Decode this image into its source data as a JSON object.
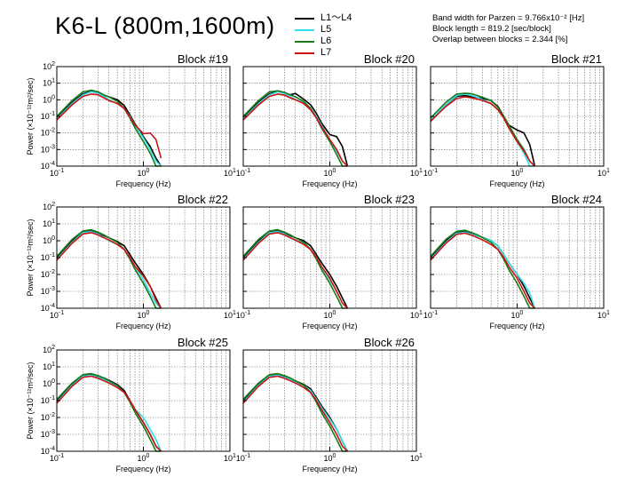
{
  "title": "K6-L (800m,1600m)",
  "legend": [
    {
      "label": "L1～L4",
      "color": "#000000"
    },
    {
      "label": "L5",
      "color": "#33ddee"
    },
    {
      "label": "L6",
      "color": "#1a7a1a"
    },
    {
      "label": "L7",
      "color": "#cc1111"
    }
  ],
  "info": {
    "bandwidth": "Band width for Parzen = 9.766x10⁻² [Hz]",
    "block_length": "Block length = 819.2 [sec/block]",
    "overlap": "Overlap between blocks = 2.344 [%]"
  },
  "chart_data": [
    {
      "type": "line",
      "block_label": "Block #19",
      "xlabel": "Frequency (Hz)",
      "ylabel": "Power (×10⁻¹²m²/sec)",
      "xscale": "log",
      "yscale": "log",
      "xlim": [
        0.1,
        10
      ],
      "ylim": [
        0.0001,
        100
      ],
      "grid": true,
      "x": [
        0.1,
        0.15,
        0.2,
        0.25,
        0.3,
        0.35,
        0.4,
        0.5,
        0.6,
        0.7,
        0.8,
        1.0,
        1.2,
        1.4,
        1.6
      ],
      "series": [
        {
          "name": "L1～L4",
          "values": [
            0.08,
            0.7,
            2.3,
            3.2,
            2.6,
            1.9,
            1.5,
            1.0,
            0.45,
            0.12,
            0.035,
            0.006,
            0.0015,
            0.0003,
            0.0001
          ]
        },
        {
          "name": "L5",
          "values": [
            0.07,
            0.6,
            2.0,
            3.0,
            2.5,
            1.6,
            1.0,
            0.6,
            0.3,
            0.1,
            0.03,
            0.005,
            0.001,
            0.0002,
            0.0001
          ]
        },
        {
          "name": "L6",
          "values": [
            0.1,
            0.9,
            3.0,
            3.8,
            3.0,
            2.0,
            1.5,
            0.8,
            0.3,
            0.08,
            0.02,
            0.003,
            0.0006,
            0.0001,
            0.0001
          ]
        },
        {
          "name": "L7",
          "values": [
            0.06,
            0.5,
            1.6,
            2.2,
            2.0,
            1.3,
            0.9,
            0.6,
            0.3,
            0.09,
            0.03,
            0.009,
            0.01,
            0.004,
            0.0003
          ]
        }
      ]
    },
    {
      "type": "line",
      "block_label": "Block #20",
      "xlabel": "Frequency (Hz)",
      "ylabel": "",
      "xscale": "log",
      "yscale": "log",
      "xlim": [
        0.1,
        10
      ],
      "ylim": [
        0.0001,
        100
      ],
      "grid": true,
      "x": [
        0.1,
        0.15,
        0.2,
        0.25,
        0.3,
        0.35,
        0.4,
        0.5,
        0.6,
        0.7,
        0.8,
        1.0,
        1.2,
        1.4,
        1.6
      ],
      "series": [
        {
          "name": "L1～L4",
          "values": [
            0.08,
            0.7,
            2.3,
            3.2,
            2.6,
            2.0,
            2.4,
            1.1,
            0.5,
            0.15,
            0.04,
            0.008,
            0.006,
            0.0015,
            0.0001
          ]
        },
        {
          "name": "L5",
          "values": [
            0.07,
            0.6,
            2.0,
            3.0,
            2.4,
            1.6,
            1.0,
            0.7,
            0.3,
            0.1,
            0.03,
            0.004,
            0.0008,
            0.0002,
            0.0001
          ]
        },
        {
          "name": "L6",
          "values": [
            0.1,
            0.9,
            3.0,
            3.5,
            2.8,
            2.0,
            1.5,
            0.8,
            0.3,
            0.08,
            0.02,
            0.003,
            0.0005,
            0.0001,
            0.0001
          ]
        },
        {
          "name": "L7",
          "values": [
            0.06,
            0.5,
            1.6,
            2.2,
            1.9,
            1.3,
            1.0,
            0.6,
            0.25,
            0.08,
            0.025,
            0.004,
            0.001,
            0.0002,
            0.0001
          ]
        }
      ]
    },
    {
      "type": "line",
      "block_label": "Block #21",
      "xlabel": "Frequency (Hz)",
      "ylabel": "",
      "xscale": "log",
      "yscale": "log",
      "xlim": [
        0.1,
        10
      ],
      "ylim": [
        0.0001,
        100
      ],
      "grid": true,
      "x": [
        0.1,
        0.15,
        0.2,
        0.25,
        0.3,
        0.35,
        0.4,
        0.5,
        0.6,
        0.7,
        0.8,
        1.0,
        1.2,
        1.4,
        1.6
      ],
      "series": [
        {
          "name": "L1～L4",
          "values": [
            0.05,
            0.5,
            1.6,
            1.8,
            1.5,
            1.4,
            1.2,
            0.9,
            0.4,
            0.1,
            0.03,
            0.015,
            0.01,
            0.002,
            0.0001
          ]
        },
        {
          "name": "L5",
          "values": [
            0.06,
            0.5,
            1.8,
            2.2,
            1.8,
            1.4,
            1.0,
            0.6,
            0.25,
            0.08,
            0.02,
            0.003,
            0.0006,
            0.0001,
            0.0001
          ]
        },
        {
          "name": "L6",
          "values": [
            0.08,
            0.7,
            2.2,
            2.5,
            2.3,
            1.8,
            1.4,
            0.9,
            0.35,
            0.1,
            0.03,
            0.004,
            0.001,
            0.0002,
            0.0001
          ]
        },
        {
          "name": "L7",
          "values": [
            0.05,
            0.4,
            1.2,
            1.5,
            1.3,
            1.1,
            0.9,
            0.6,
            0.25,
            0.08,
            0.02,
            0.003,
            0.0008,
            0.0002,
            0.0001
          ]
        }
      ]
    },
    {
      "type": "line",
      "block_label": "Block #22",
      "xlabel": "Frequency (Hz)",
      "ylabel": "Power (×10⁻¹²m²/sec)",
      "xscale": "log",
      "yscale": "log",
      "xlim": [
        0.1,
        10
      ],
      "ylim": [
        0.0001,
        100
      ],
      "grid": true,
      "x": [
        0.1,
        0.15,
        0.2,
        0.25,
        0.3,
        0.35,
        0.4,
        0.5,
        0.6,
        0.7,
        0.8,
        1.0,
        1.2,
        1.4,
        1.6
      ],
      "series": [
        {
          "name": "L1～L4",
          "values": [
            0.1,
            1.0,
            3.5,
            4.0,
            2.8,
            2.0,
            1.5,
            0.9,
            0.5,
            0.15,
            0.05,
            0.01,
            0.002,
            0.0004,
            0.0001
          ]
        },
        {
          "name": "L5",
          "values": [
            0.08,
            0.8,
            3.0,
            3.5,
            2.5,
            1.6,
            1.0,
            0.6,
            0.3,
            0.1,
            0.03,
            0.005,
            0.0008,
            0.0002,
            0.0001
          ]
        },
        {
          "name": "L6",
          "values": [
            0.12,
            1.2,
            3.8,
            4.5,
            3.2,
            2.2,
            1.5,
            0.8,
            0.3,
            0.08,
            0.02,
            0.003,
            0.0005,
            0.0001,
            0.0001
          ]
        },
        {
          "name": "L7",
          "values": [
            0.07,
            0.7,
            2.5,
            3.0,
            2.2,
            1.5,
            1.1,
            0.6,
            0.3,
            0.1,
            0.03,
            0.008,
            0.002,
            0.0003,
            0.0001
          ]
        }
      ]
    },
    {
      "type": "line",
      "block_label": "Block #23",
      "xlabel": "Frequency (Hz)",
      "ylabel": "",
      "xscale": "log",
      "yscale": "log",
      "xlim": [
        0.1,
        10
      ],
      "ylim": [
        0.0001,
        100
      ],
      "grid": true,
      "x": [
        0.1,
        0.15,
        0.2,
        0.25,
        0.3,
        0.35,
        0.4,
        0.5,
        0.6,
        0.7,
        0.8,
        1.0,
        1.2,
        1.4,
        1.6
      ],
      "series": [
        {
          "name": "L1～L4",
          "values": [
            0.1,
            1.0,
            3.5,
            4.0,
            2.8,
            2.0,
            1.5,
            1.0,
            0.5,
            0.15,
            0.05,
            0.01,
            0.002,
            0.0004,
            0.0001
          ]
        },
        {
          "name": "L5",
          "values": [
            0.08,
            0.8,
            3.0,
            3.5,
            2.5,
            1.6,
            1.0,
            0.7,
            0.3,
            0.1,
            0.03,
            0.005,
            0.001,
            0.0002,
            0.0001
          ]
        },
        {
          "name": "L6",
          "values": [
            0.12,
            1.2,
            3.8,
            4.5,
            3.2,
            2.2,
            1.5,
            0.8,
            0.3,
            0.08,
            0.02,
            0.003,
            0.0005,
            0.0001,
            0.0001
          ]
        },
        {
          "name": "L7",
          "values": [
            0.07,
            0.7,
            2.5,
            3.0,
            2.2,
            1.5,
            1.1,
            0.6,
            0.3,
            0.1,
            0.03,
            0.006,
            0.001,
            0.0002,
            0.0001
          ]
        }
      ]
    },
    {
      "type": "line",
      "block_label": "Block #24",
      "xlabel": "Frequency (Hz)",
      "ylabel": "",
      "xscale": "log",
      "yscale": "log",
      "xlim": [
        0.1,
        10
      ],
      "ylim": [
        0.0001,
        100
      ],
      "grid": true,
      "x": [
        0.1,
        0.15,
        0.2,
        0.25,
        0.3,
        0.35,
        0.4,
        0.5,
        0.6,
        0.7,
        0.8,
        1.0,
        1.2,
        1.4,
        1.6
      ],
      "series": [
        {
          "name": "L1～L4",
          "values": [
            0.1,
            1.0,
            3.2,
            3.6,
            2.6,
            2.0,
            1.6,
            1.0,
            0.5,
            0.15,
            0.05,
            0.01,
            0.002,
            0.0004,
            0.0001
          ]
        },
        {
          "name": "L5",
          "values": [
            0.08,
            0.8,
            2.8,
            3.2,
            2.4,
            1.8,
            1.6,
            1.0,
            0.5,
            0.15,
            0.05,
            0.01,
            0.003,
            0.0008,
            0.0001
          ]
        },
        {
          "name": "L6",
          "values": [
            0.12,
            1.2,
            3.6,
            4.2,
            3.0,
            2.2,
            1.5,
            0.8,
            0.3,
            0.08,
            0.02,
            0.003,
            0.0005,
            0.0001,
            0.0001
          ]
        },
        {
          "name": "L7",
          "values": [
            0.07,
            0.7,
            2.4,
            2.8,
            2.1,
            1.5,
            1.1,
            0.6,
            0.3,
            0.1,
            0.03,
            0.006,
            0.001,
            0.0002,
            0.0001
          ]
        }
      ]
    },
    {
      "type": "line",
      "block_label": "Block #25",
      "xlabel": "Frequency (Hz)",
      "ylabel": "Power (×10⁻¹²m²/sec)",
      "xscale": "log",
      "yscale": "log",
      "xlim": [
        0.1,
        10
      ],
      "ylim": [
        0.0001,
        100
      ],
      "grid": true,
      "x": [
        0.1,
        0.15,
        0.2,
        0.25,
        0.3,
        0.35,
        0.4,
        0.5,
        0.6,
        0.7,
        0.8,
        1.0,
        1.2,
        1.4,
        1.6
      ],
      "series": [
        {
          "name": "L1～L4",
          "values": [
            0.1,
            0.9,
            3.0,
            3.5,
            2.6,
            2.2,
            1.6,
            0.9,
            0.4,
            0.1,
            0.03,
            0.005,
            0.001,
            0.0002,
            0.0001
          ]
        },
        {
          "name": "L5",
          "values": [
            0.08,
            0.8,
            2.8,
            3.2,
            2.4,
            1.8,
            1.2,
            0.7,
            0.3,
            0.1,
            0.03,
            0.01,
            0.002,
            0.0005,
            0.0001
          ]
        },
        {
          "name": "L6",
          "values": [
            0.12,
            1.1,
            3.5,
            4.0,
            3.0,
            2.2,
            1.5,
            0.8,
            0.3,
            0.08,
            0.02,
            0.003,
            0.0005,
            0.0001,
            0.0001
          ]
        },
        {
          "name": "L7",
          "values": [
            0.07,
            0.7,
            2.4,
            2.8,
            2.1,
            1.5,
            1.1,
            0.6,
            0.3,
            0.1,
            0.03,
            0.005,
            0.001,
            0.0002,
            0.0001
          ]
        }
      ]
    },
    {
      "type": "line",
      "block_label": "Block #26",
      "xlabel": "Frequency (Hz)",
      "ylabel": "",
      "xscale": "log",
      "yscale": "log",
      "xlim": [
        0.1,
        10
      ],
      "ylim": [
        0.0001,
        100
      ],
      "grid": true,
      "x": [
        0.1,
        0.15,
        0.2,
        0.25,
        0.3,
        0.35,
        0.4,
        0.5,
        0.6,
        0.7,
        0.8,
        1.0,
        1.2,
        1.4,
        1.6
      ],
      "series": [
        {
          "name": "L1～L4",
          "values": [
            0.1,
            0.9,
            3.0,
            3.5,
            2.6,
            2.0,
            1.5,
            0.9,
            0.5,
            0.15,
            0.05,
            0.01,
            0.002,
            0.0004,
            0.0001
          ]
        },
        {
          "name": "L5",
          "values": [
            0.08,
            0.8,
            2.8,
            3.2,
            2.4,
            1.8,
            1.3,
            0.8,
            0.4,
            0.12,
            0.04,
            0.008,
            0.002,
            0.0004,
            0.0001
          ]
        },
        {
          "name": "L6",
          "values": [
            0.12,
            1.1,
            3.5,
            4.0,
            3.0,
            2.2,
            1.5,
            0.8,
            0.3,
            0.08,
            0.02,
            0.003,
            0.0005,
            0.0001,
            0.0001
          ]
        },
        {
          "name": "L7",
          "values": [
            0.07,
            0.7,
            2.4,
            2.8,
            2.1,
            1.5,
            1.1,
            0.6,
            0.3,
            0.1,
            0.03,
            0.005,
            0.001,
            0.0002,
            0.0001
          ]
        }
      ]
    }
  ]
}
